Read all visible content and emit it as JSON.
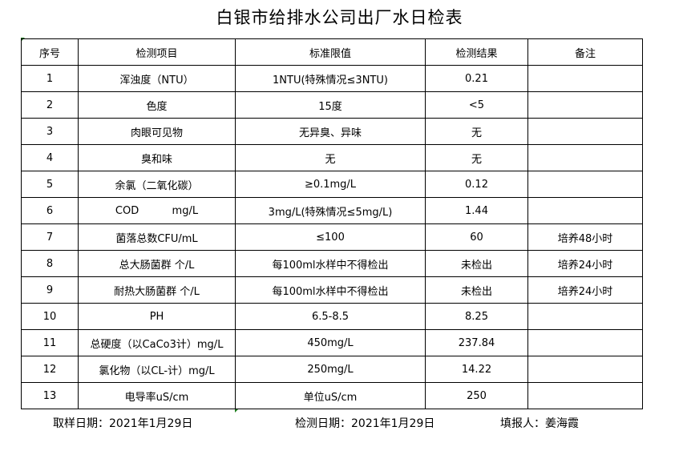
{
  "title": "白银市给排水公司出厂水日检表",
  "headers": [
    "序号",
    "检测项目",
    "标准限值",
    "检测结果",
    "备注"
  ],
  "rows": [
    [
      "1",
      "浑浊度（NTU）",
      "1NTU(特殊情况≤3NTU)",
      "0.21",
      ""
    ],
    [
      "2",
      "色度",
      "15度",
      "<5",
      ""
    ],
    [
      "3",
      "肉眼可见物",
      "无异臭、异味",
      "无",
      ""
    ],
    [
      "4",
      "臭和味",
      "无",
      "无",
      ""
    ],
    [
      "5",
      "余氯（二氧化碳）",
      "≥0.1mg/L",
      "0.12",
      ""
    ],
    [
      "6",
      "COD          mg/L",
      "3mg/L(特殊情况≤5mg/L)",
      "1.44",
      ""
    ],
    [
      "7",
      "菌落总数CFU/mL",
      "≤100",
      "60",
      "培养48小时"
    ],
    [
      "8",
      "总大肠菌群 个/L",
      "每100ml水样中不得检出",
      "未检出",
      "培养24小时"
    ],
    [
      "9",
      "耐热大肠菌群 个/L",
      "每100ml水样中不得检出",
      "未检出",
      "培养24小时"
    ],
    [
      "10",
      "PH",
      "6.5-8.5",
      "8.25",
      ""
    ],
    [
      "11",
      "总硬度（以CaCo3计）mg/L",
      "450mg/L",
      "237.84",
      ""
    ],
    [
      "12",
      "氯化物（以CL-计）mg/L",
      "250mg/L",
      "14.22",
      ""
    ],
    [
      "13",
      "电导率uS/cm",
      "单位uS/cm",
      "250",
      ""
    ]
  ],
  "footer": {
    "sampling_date": "取样日期：2021年1月29日",
    "test_date": "检测日期：2021年1月29日",
    "reporter": "填报人：姜海霞"
  }
}
